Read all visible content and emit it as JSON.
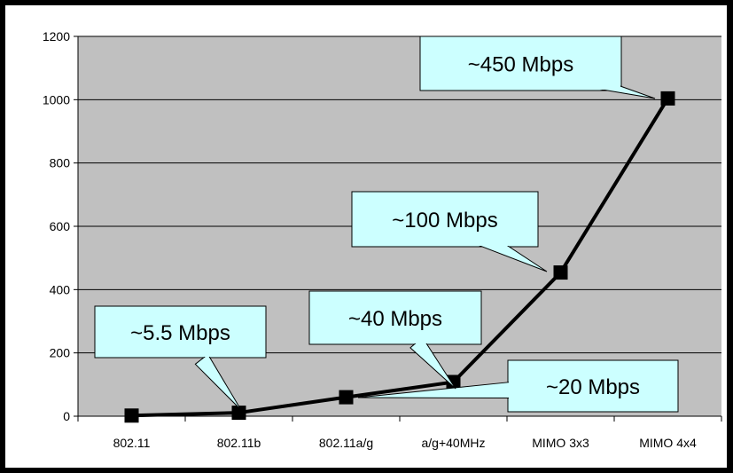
{
  "chart_data": {
    "type": "line",
    "categories": [
      "802.11",
      "802.11b",
      "802.11a/g",
      "a/g+40MHz",
      "MIMO 3x3",
      "MIMO 4x4"
    ],
    "series": [
      {
        "values": [
          2,
          11,
          60,
          108,
          454,
          1004
        ]
      }
    ],
    "ylim": [
      0,
      1200
    ],
    "yticks": [
      0,
      200,
      400,
      600,
      800,
      1000,
      1200
    ],
    "ytick_labels": [
      "0",
      "200",
      "400",
      "600",
      "800",
      "1000",
      "1200"
    ],
    "grid": true,
    "legend": "none",
    "annotations": [
      {
        "label": "~5.5 Mbps",
        "points_to": 1
      },
      {
        "label": "~20 Mbps",
        "points_to": 2
      },
      {
        "label": "~40 Mbps",
        "points_to": 3
      },
      {
        "label": "~100 Mbps",
        "points_to": 4
      },
      {
        "label": "~450 Mbps",
        "points_to": 5
      }
    ],
    "colors": {
      "plot_area": "#c0c0c0",
      "line": "#000000",
      "marker": "#000000",
      "callout_fill": "#ccffff",
      "gridline": "#000000"
    }
  }
}
